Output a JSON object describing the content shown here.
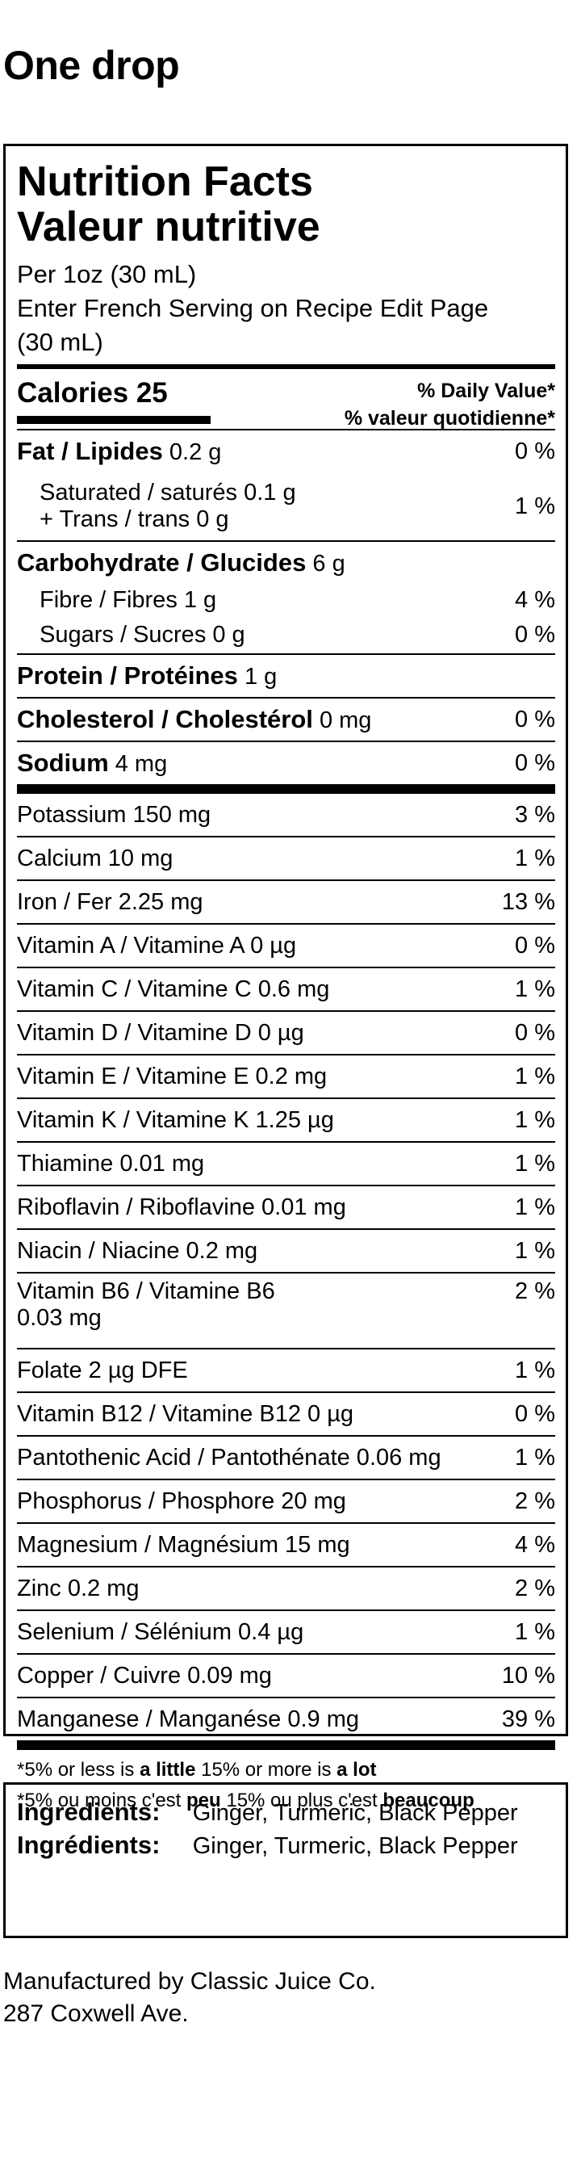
{
  "title": "One drop",
  "label": {
    "heading_en": "Nutrition Facts",
    "heading_fr": "Valeur nutritive",
    "serving_1": "Per 1oz (30 mL)",
    "serving_2": "Enter French Serving on Recipe Edit Page",
    "serving_3": "(30 mL)",
    "calories": "Calories 25",
    "dv_en": "% Daily Value*",
    "dv_fr": "% valeur quotidienne*",
    "fat_name": "Fat / Lipides",
    "fat_amt": "0.2 g",
    "fat_dv": "0 %",
    "sat": "Saturated / saturés 0.1 g",
    "trans": "+ Trans / trans 0 g",
    "sat_dv": "1 %",
    "carb_name": "Carbohydrate / Glucides",
    "carb_amt": "6 g",
    "fibre": "Fibre / Fibres 1 g",
    "fibre_dv": "4 %",
    "sugars": "Sugars / Sucres 0 g",
    "sugars_dv": "0 %",
    "protein_name": "Protein / Protéines",
    "protein_amt": "1 g",
    "chol_name": "Cholesterol / Cholestérol",
    "chol_amt": "0 mg",
    "chol_dv": "0 %",
    "sodium_name": "Sodium",
    "sodium_amt": "4 mg",
    "sodium_dv": "0 %",
    "micros": [
      {
        "name": "Potassium 150 mg",
        "dv": "3 %"
      },
      {
        "name": "Calcium 10 mg",
        "dv": "1 %"
      },
      {
        "name": "Iron / Fer 2.25 mg",
        "dv": "13 %"
      },
      {
        "name": "Vitamin A / Vitamine A 0 µg",
        "dv": "0 %"
      },
      {
        "name": "Vitamin C / Vitamine C 0.6 mg",
        "dv": "1 %"
      },
      {
        "name": "Vitamin D / Vitamine D 0 µg",
        "dv": "0 %"
      },
      {
        "name": "Vitamin E / Vitamine E 0.2 mg",
        "dv": "1 %"
      },
      {
        "name": "Vitamin K / Vitamine K 1.25 µg",
        "dv": "1 %"
      },
      {
        "name": "Thiamine 0.01 mg",
        "dv": "1 %"
      },
      {
        "name": "Riboflavin / Riboflavine 0.01 mg",
        "dv": "1 %"
      },
      {
        "name": "Niacin / Niacine 0.2 mg",
        "dv": "1 %"
      },
      {
        "name": "Vitamin B6 / Vitamine B6",
        "name2": "0.03 mg",
        "dv": "2 %"
      },
      {
        "name": "Folate 2 µg DFE",
        "dv": "1 %"
      },
      {
        "name": "Vitamin B12 / Vitamine B12 0 µg",
        "dv": "0 %"
      },
      {
        "name": "Pantothenic Acid / Pantothénate 0.06 mg",
        "dv": "1 %"
      },
      {
        "name": "Phosphorus / Phosphore 20 mg",
        "dv": "2 %"
      },
      {
        "name": "Magnesium / Magnésium 15 mg",
        "dv": "4 %"
      },
      {
        "name": "Zinc 0.2 mg",
        "dv": "2 %"
      },
      {
        "name": "Selenium / Sélénium 0.4 µg",
        "dv": "1 %"
      },
      {
        "name": "Copper / Cuivre 0.09 mg",
        "dv": "10 %"
      },
      {
        "name": "Manganese / Manganése 0.9 mg",
        "dv": "39 %"
      }
    ],
    "foot_en_a": "*5% or less is ",
    "foot_en_b": "a little",
    "foot_en_c": " 15% or more is ",
    "foot_en_d": "a lot",
    "foot_fr_a": "*5% ou moins c'est ",
    "foot_fr_b": "peu",
    "foot_fr_c": " 15% ou plus c'est ",
    "foot_fr_d": "beaucoup"
  },
  "ingredients": {
    "label_en": "Ingredients:",
    "text_en": "Ginger, Turmeric, Black Pepper",
    "label_fr": "Ingrédients:",
    "text_fr": "Ginger, Turmeric, Black Pepper"
  },
  "manufacturer": {
    "line1": "Manufactured by Classic Juice Co.",
    "line2": "287 Coxwell Ave."
  }
}
